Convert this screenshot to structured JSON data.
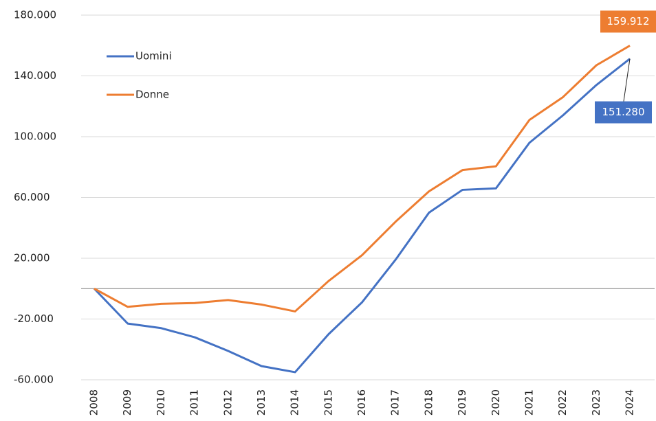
{
  "chart_data": {
    "type": "line",
    "categories": [
      "2008",
      "2009",
      "2010",
      "2011",
      "2012",
      "2013",
      "2014",
      "2015",
      "2016",
      "2017",
      "2018",
      "2019",
      "2020",
      "2021",
      "2022",
      "2023",
      "2024"
    ],
    "series": [
      {
        "name": "Uomini",
        "color": "#4472c4",
        "values": [
          0,
          -23000,
          -26000,
          -32000,
          -41000,
          -51000,
          -55000,
          -30000,
          -9000,
          19000,
          50000,
          65000,
          66000,
          96000,
          114000,
          134000,
          151280
        ],
        "value_labels": [
          null,
          null,
          null,
          null,
          null,
          null,
          null,
          null,
          null,
          null,
          null,
          null,
          null,
          null,
          null,
          null,
          "151.280"
        ]
      },
      {
        "name": "Donne",
        "color": "#ed7d31",
        "values": [
          0,
          -12000,
          -10000,
          -9500,
          -7500,
          -10500,
          -15000,
          5000,
          22000,
          44000,
          64000,
          78000,
          80500,
          111000,
          126000,
          147000,
          159912
        ],
        "value_labels": [
          null,
          null,
          null,
          null,
          null,
          null,
          null,
          null,
          null,
          null,
          null,
          null,
          null,
          null,
          null,
          null,
          "159.912"
        ]
      }
    ],
    "ylim": [
      -60000,
      180000
    ],
    "yticks": [
      {
        "value": -60000,
        "label": "-60.000"
      },
      {
        "value": -20000,
        "label": "-20.000"
      },
      {
        "value": 20000,
        "label": "20.000"
      },
      {
        "value": 60000,
        "label": "60.000"
      },
      {
        "value": 100000,
        "label": "100.000"
      },
      {
        "value": 140000,
        "label": "140.000"
      },
      {
        "value": 180000,
        "label": "180.000"
      }
    ],
    "grid": true,
    "legend": "upper left"
  }
}
